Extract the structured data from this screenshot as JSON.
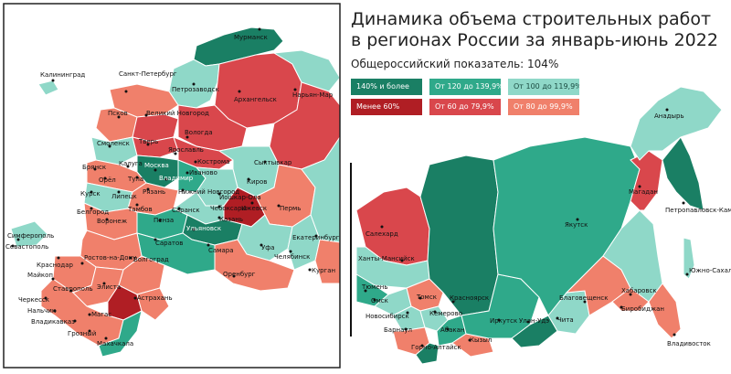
{
  "title": "Динамика объема строительных работ\nв регионах России за январь-июнь 2022",
  "subtitle": "Общероссийский показатель: 104%",
  "colors": {
    "c140": "#1a7f64",
    "c120": "#2fa98a",
    "c100": "#8fd8c8",
    "c60less": "#b01e24",
    "c60": "#d9474c",
    "c80": "#f0806b",
    "frame": "#222222"
  },
  "legend": [
    {
      "label": "140% и более",
      "color": "#1a7f64"
    },
    {
      "label": "От 120 до 139,9%",
      "color": "#2fa98a"
    },
    {
      "label": "От 100 до 119,9%",
      "color": "#8fd8c8"
    },
    {
      "label": "Менее 60%",
      "color": "#b01e24"
    },
    {
      "label": "От 60 до 79,9%",
      "color": "#d9474c"
    },
    {
      "label": "От 80 до 99,9%",
      "color": "#f0806b"
    }
  ],
  "cities_inset": [
    "Мурманск",
    "Калининград",
    "Санкт-Петербург",
    "Петрозаводск",
    "Архангельск",
    "Нарьян-Мар",
    "Псков",
    "Великий Новгород",
    "Вологда",
    "Смоленск",
    "Тверь",
    "Ярославль",
    "Кострома",
    "Москва",
    "Иваново",
    "Брянск",
    "Калуга",
    "Тула",
    "Владимир",
    "Сыктывкар",
    "Орёл",
    "Рязань",
    "Нижний Новгород",
    "Киров",
    "Курск",
    "Липецк",
    "Йошкар-Ола",
    "Чебоксары",
    "Ижевск",
    "Белгород",
    "Тамбов",
    "Саранск",
    "Казань",
    "Пермь",
    "Воронеж",
    "Пенза",
    "Ульяновск",
    "Екатеринбург",
    "Симферополь",
    "Севастополь",
    "Саратов",
    "Самара",
    "Уфа",
    "Челябинск",
    "Краснодар",
    "Ростов-на-Дону",
    "Волгоград",
    "Курган",
    "Оренбург",
    "Майкоп",
    "Элиста",
    "Ставрополь",
    "Черкесск",
    "Астрахань",
    "Нальчик",
    "Магас",
    "Владикавказ",
    "Грозный",
    "Махачкала"
  ],
  "cities_main": [
    "Анадырь",
    "Салехард",
    "Магадан",
    "Якутск",
    "Петропавловск-Камчатский",
    "Ханты-Мансийск",
    "Тюмень",
    "Южно-Сахалинск",
    "Омск",
    "Томск",
    "Красноярск",
    "Хабаровск",
    "Новосибирск",
    "Кемерово",
    "Благовещенск",
    "Биробиджан",
    "Барнаул",
    "Иркутск",
    "Улан-Удэ",
    "Чита",
    "Абакан",
    "Горно-Алтайск",
    "Кызыл",
    "Владивосток"
  ]
}
